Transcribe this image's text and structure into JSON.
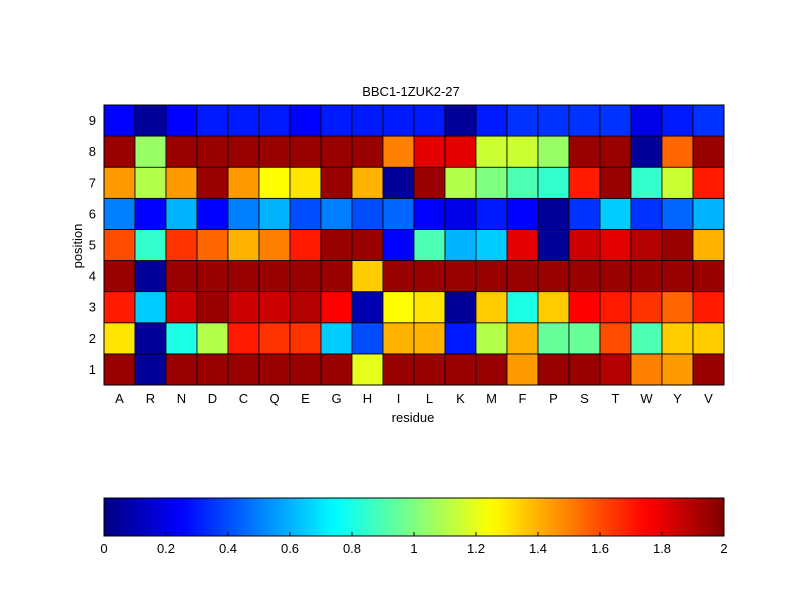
{
  "chart_data": {
    "type": "heatmap",
    "title": "BBC1-1ZUK2-27",
    "xlabel": "residue",
    "ylabel": "position",
    "x_categories": [
      "A",
      "R",
      "N",
      "D",
      "C",
      "Q",
      "E",
      "G",
      "H",
      "I",
      "L",
      "K",
      "M",
      "F",
      "P",
      "S",
      "T",
      "W",
      "Y",
      "V"
    ],
    "y_categories": [
      "1",
      "2",
      "3",
      "4",
      "5",
      "6",
      "7",
      "8",
      "9"
    ],
    "values": [
      [
        1.95,
        0.05,
        1.95,
        1.95,
        1.95,
        1.95,
        1.95,
        1.95,
        1.2,
        1.95,
        1.95,
        1.95,
        1.95,
        1.45,
        1.95,
        1.95,
        1.9,
        1.5,
        1.45,
        1.95
      ],
      [
        1.3,
        0.05,
        0.8,
        1.1,
        1.7,
        1.65,
        1.65,
        0.65,
        0.4,
        1.4,
        1.4,
        0.3,
        1.1,
        1.4,
        0.95,
        0.95,
        1.6,
        0.9,
        1.35,
        1.35
      ],
      [
        1.7,
        0.65,
        1.85,
        1.95,
        1.85,
        1.85,
        1.9,
        1.75,
        0.1,
        1.25,
        1.3,
        0.05,
        1.35,
        0.8,
        1.35,
        1.75,
        1.7,
        1.65,
        1.55,
        1.7
      ],
      [
        1.95,
        0.05,
        1.95,
        1.95,
        1.95,
        1.95,
        1.95,
        1.95,
        1.35,
        1.95,
        1.95,
        1.95,
        1.95,
        1.95,
        1.95,
        1.95,
        1.95,
        1.95,
        1.95,
        1.95
      ],
      [
        1.6,
        0.85,
        1.65,
        1.55,
        1.4,
        1.5,
        1.7,
        1.95,
        1.95,
        0.25,
        0.9,
        0.6,
        0.65,
        1.8,
        0.05,
        1.85,
        1.8,
        1.9,
        1.95,
        1.4
      ],
      [
        0.5,
        0.25,
        0.6,
        0.25,
        0.5,
        0.6,
        0.4,
        0.5,
        0.4,
        0.45,
        0.25,
        0.2,
        0.3,
        0.25,
        0.05,
        0.35,
        0.65,
        0.35,
        0.45,
        0.6
      ],
      [
        1.45,
        1.1,
        1.45,
        1.95,
        1.45,
        1.25,
        1.3,
        1.95,
        1.4,
        0.05,
        1.95,
        1.1,
        1.0,
        0.9,
        0.85,
        1.7,
        1.95,
        0.85,
        1.15,
        1.7
      ],
      [
        1.95,
        1.05,
        1.95,
        1.95,
        1.95,
        1.95,
        1.95,
        1.95,
        1.95,
        1.5,
        1.8,
        1.8,
        1.15,
        1.15,
        1.05,
        1.95,
        1.95,
        0.05,
        1.55,
        1.95
      ],
      [
        0.25,
        0.05,
        0.25,
        0.3,
        0.3,
        0.3,
        0.25,
        0.3,
        0.3,
        0.3,
        0.3,
        0.05,
        0.3,
        0.35,
        0.35,
        0.35,
        0.35,
        0.2,
        0.3,
        0.35
      ]
    ],
    "colorbar": {
      "colormap": "jet",
      "range": [
        0,
        2
      ],
      "tick_labels": [
        "0",
        "0.2",
        "0.4",
        "0.6",
        "0.8",
        "1",
        "1.2",
        "1.4",
        "1.6",
        "1.8",
        "2"
      ]
    },
    "grid": false,
    "legend": "colorbar-bottom"
  }
}
